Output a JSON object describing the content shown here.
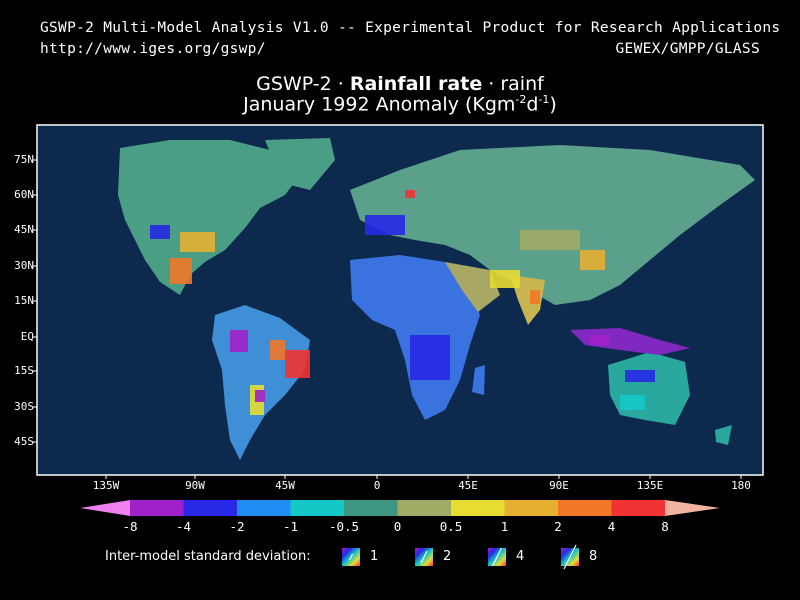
{
  "header": {
    "line1": "GSWP-2 Multi-Model Analysis V1.0 -- Experimental Product for Research Applications",
    "url": "http://www.iges.org/gswp/",
    "projects": "GEWEX/GMPP/GLASS"
  },
  "title": {
    "prefix": "GSWP-2 · ",
    "variable": "Rainfall rate",
    "suffix": " · rainf",
    "subtitle_main": "January 1992 Anomaly (Kgm",
    "sup1": "-2",
    "mid": "d",
    "sup2": "-1",
    "close": ")"
  },
  "map": {
    "background_color": "#0d2a4e",
    "frame_color": "#ffffff",
    "lat_labels": [
      "75N",
      "60N",
      "45N",
      "30N",
      "15N",
      "EQ",
      "15S",
      "30S",
      "45S"
    ],
    "lon_labels": [
      "135W",
      "90W",
      "45W",
      "0",
      "45E",
      "90E",
      "135E",
      "180"
    ]
  },
  "colorbar": {
    "labels": [
      "-8",
      "-4",
      "-2",
      "-1",
      "-0.5",
      "0",
      "0.5",
      "1",
      "2",
      "4",
      "8"
    ],
    "colors": [
      "#f07ff0",
      "#a020c8",
      "#2828e6",
      "#1e8cf0",
      "#14c8c8",
      "#3c9682",
      "#a0aa64",
      "#e6dc32",
      "#e6af32",
      "#f07828",
      "#f03232",
      "#f0b4a0"
    ]
  },
  "legend": {
    "label": "Inter-model standard deviation:",
    "values": [
      "1",
      "2",
      "4",
      "8"
    ]
  }
}
